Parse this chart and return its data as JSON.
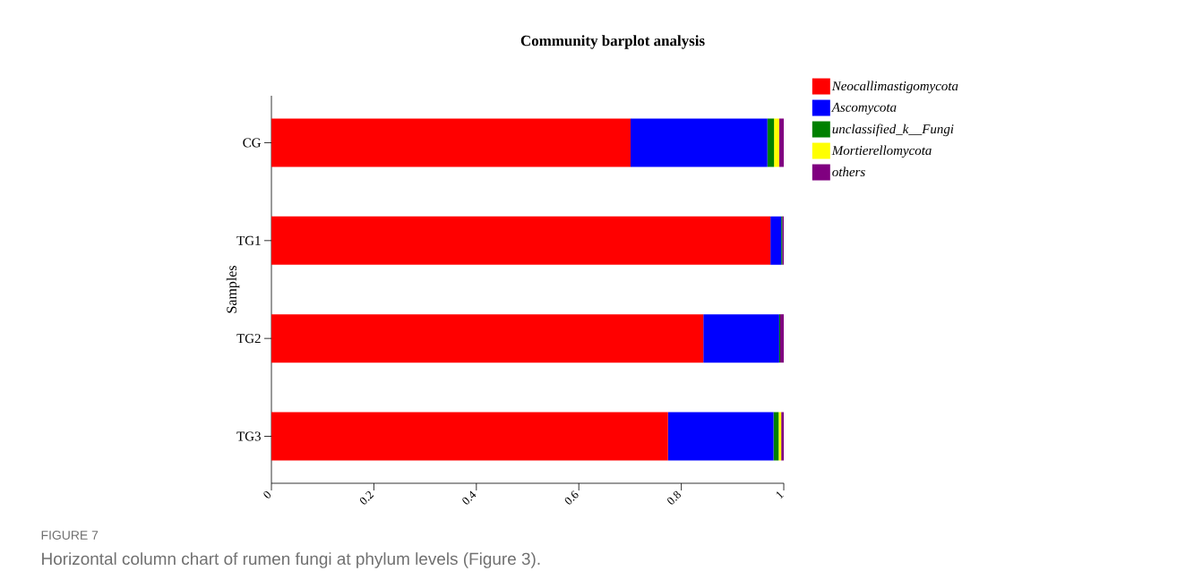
{
  "chart_data": {
    "type": "bar",
    "orientation": "horizontal",
    "stacked": true,
    "title": "Community barplot analysis",
    "ylabel": "Samples",
    "categories": [
      "CG",
      "TG1",
      "TG2",
      "TG3"
    ],
    "series": [
      {
        "name": "Neocallimastigomycota",
        "color": "#ff0000",
        "values": [
          0.701,
          0.974,
          0.843,
          0.774
        ]
      },
      {
        "name": "Ascomycota",
        "color": "#0000ff",
        "values": [
          0.267,
          0.021,
          0.148,
          0.206
        ]
      },
      {
        "name": "unclassified_k__Fungi",
        "color": "#008000",
        "values": [
          0.013,
          0.002,
          0.002,
          0.01
        ]
      },
      {
        "name": "Mortierellomycota",
        "color": "#ffff00",
        "values": [
          0.01,
          0,
          0,
          0.005
        ]
      },
      {
        "name": "others",
        "color": "#800080",
        "values": [
          0.009,
          0.003,
          0.007,
          0.005
        ]
      }
    ],
    "xlim": [
      0,
      1
    ],
    "xticks": [
      0,
      0.2,
      0.4,
      0.6,
      0.8,
      1
    ],
    "legend": "top right",
    "annotations": [
      "FIGURE 7",
      "Horizontal column chart of rumen fungi at phylum levels (Figure 3)."
    ]
  }
}
